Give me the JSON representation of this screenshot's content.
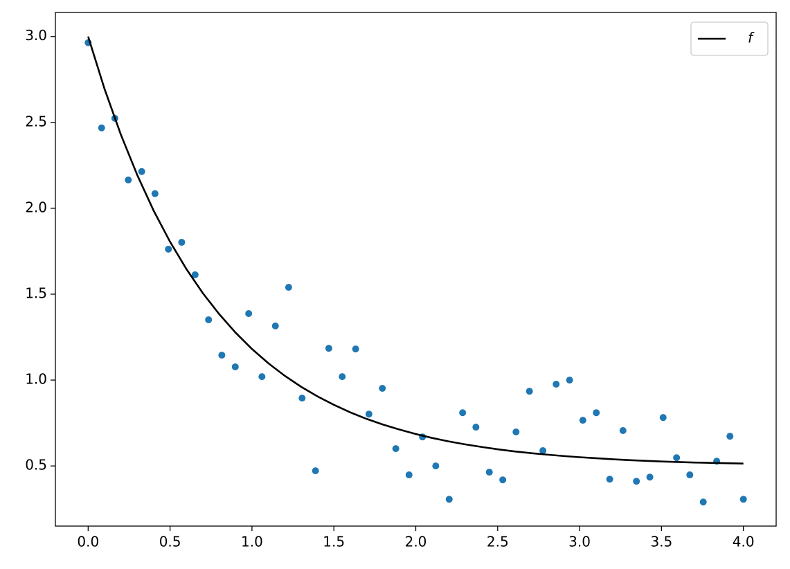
{
  "chart_data": {
    "type": "scatter",
    "xlim": [
      -0.2,
      4.2
    ],
    "ylim": [
      0.15,
      3.14
    ],
    "xticks": [
      {
        "value": 0,
        "label": "0.0"
      },
      0.5,
      {
        "value": 1,
        "label": "1.0"
      },
      1.5,
      {
        "value": 2,
        "label": "2.0"
      },
      2.5,
      {
        "value": 3,
        "label": "3.0"
      },
      3.5,
      {
        "value": 4,
        "label": "4.0"
      }
    ],
    "yticks": [
      0.5,
      {
        "value": 1,
        "label": "1.0"
      },
      1.5,
      {
        "value": 2,
        "label": "2.0"
      },
      2.5,
      {
        "value": 3,
        "label": "3.0"
      }
    ],
    "grid": false,
    "legend": "upper right",
    "series": [
      {
        "type": "scatter",
        "color": "#1f77b4",
        "x": [
          0,
          0.082,
          0.163,
          0.245,
          0.327,
          0.408,
          0.49,
          0.571,
          0.653,
          0.735,
          0.816,
          0.898,
          0.98,
          1.061,
          1.143,
          1.224,
          1.306,
          1.388,
          1.469,
          1.551,
          1.633,
          1.714,
          1.796,
          1.878,
          1.959,
          2.041,
          2.122,
          2.204,
          2.286,
          2.367,
          2.449,
          2.531,
          2.612,
          2.694,
          2.776,
          2.857,
          2.939,
          3.02,
          3.102,
          3.184,
          3.265,
          3.347,
          3.429,
          3.51,
          3.592,
          3.673,
          3.755,
          3.837,
          3.918,
          4.0
        ],
        "values": [
          2.964,
          2.468,
          2.524,
          2.165,
          2.214,
          2.085,
          1.762,
          1.802,
          1.613,
          1.351,
          1.145,
          1.077,
          1.387,
          1.02,
          1.315,
          1.54,
          0.895,
          0.472,
          1.185,
          1.02,
          1.181,
          0.802,
          0.952,
          0.601,
          0.448,
          0.669,
          0.5,
          0.306,
          0.81,
          0.726,
          0.464,
          0.419,
          0.698,
          0.935,
          0.589,
          0.976,
          1.0,
          0.766,
          0.81,
          0.423,
          0.706,
          0.411,
          0.435,
          0.782,
          0.548,
          0.448,
          0.29,
          0.528,
          0.673,
          0.306
        ]
      },
      {
        "type": "line",
        "name": "f",
        "color": "#000000",
        "x": [
          0,
          0.1,
          0.2,
          0.3,
          0.4,
          0.5,
          0.6,
          0.7,
          0.8,
          0.9,
          1.0,
          1.1,
          1.2,
          1.3,
          1.4,
          1.5,
          1.6,
          1.7,
          1.8,
          1.9,
          2.0,
          2.1,
          2.2,
          2.3,
          2.4,
          2.5,
          2.6,
          2.7,
          2.8,
          2.9,
          3.0,
          3.1,
          3.2,
          3.3,
          3.4,
          3.5,
          3.6,
          3.7,
          3.8,
          3.9,
          4.0
        ],
        "values": [
          3.0,
          2.695,
          2.428,
          2.193,
          1.986,
          1.805,
          1.646,
          1.506,
          1.384,
          1.276,
          1.181,
          1.098,
          1.025,
          0.961,
          0.905,
          0.856,
          0.812,
          0.774,
          0.741,
          0.712,
          0.686,
          0.663,
          0.643,
          0.626,
          0.611,
          0.597,
          0.585,
          0.575,
          0.566,
          0.558,
          0.551,
          0.545,
          0.539,
          0.534,
          0.53,
          0.526,
          0.523,
          0.52,
          0.518,
          0.516,
          0.514
        ]
      }
    ]
  }
}
